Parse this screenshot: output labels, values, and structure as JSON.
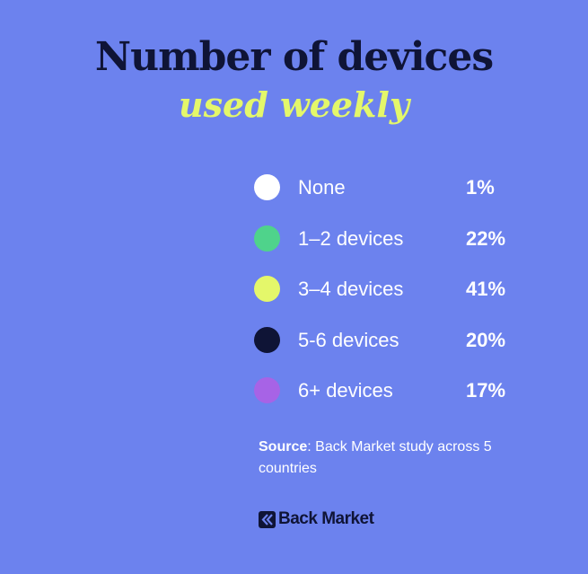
{
  "title": "Number of devices",
  "subtitle": "used weekly",
  "colors": {
    "background": "#6c82ee",
    "title": "#0f1436",
    "subtitle": "#e4f76a"
  },
  "chart_data": {
    "type": "table",
    "categories": [
      "None",
      "1–2 devices",
      "3–4 devices",
      "5-6 devices",
      "6+ devices"
    ],
    "values": [
      1,
      22,
      41,
      20,
      17
    ],
    "value_labels": [
      "1%",
      "22%",
      "41%",
      "20%",
      "17%"
    ],
    "colors": [
      "#ffffff",
      "#4fd38b",
      "#e4f76a",
      "#0f1436",
      "#a763e6"
    ]
  },
  "source": {
    "label": "Source",
    "text": ": Back Market study across 5 countries"
  },
  "brand": {
    "name": "Back Market",
    "icon": "back-market-logo-icon"
  }
}
